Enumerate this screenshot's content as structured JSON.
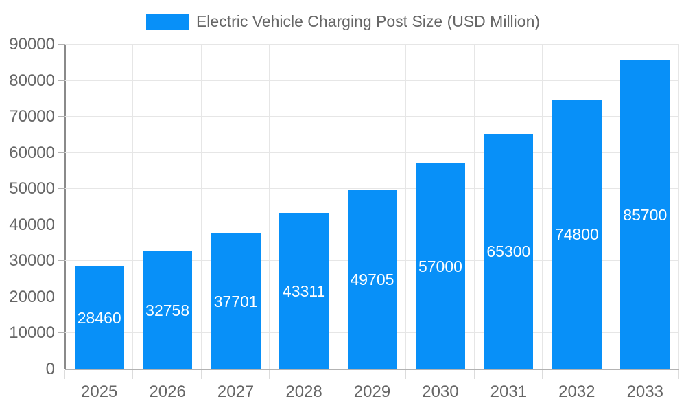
{
  "legend": {
    "label": "Electric Vehicle Charging Post Size (USD Million)"
  },
  "chart_data": {
    "type": "bar",
    "title": "Electric Vehicle Charging Post Size (USD Million)",
    "series_name": "Electric Vehicle Charging Post Size (USD Million)",
    "categories": [
      "2025",
      "2026",
      "2027",
      "2028",
      "2029",
      "2030",
      "2031",
      "2032",
      "2033"
    ],
    "values": [
      28460,
      32758,
      37701,
      43311,
      49705,
      57000,
      65300,
      74800,
      85700
    ],
    "xlabel": "",
    "ylabel": "",
    "ylim": [
      0,
      90000
    ],
    "ytick_step": 10000,
    "yticks": [
      0,
      10000,
      20000,
      30000,
      40000,
      50000,
      60000,
      70000,
      80000,
      90000
    ],
    "grid": true,
    "legend_position": "top",
    "value_label_position": "inside-center",
    "colors": {
      "bar": "#0890f8",
      "value_label": "#ffffff",
      "axis_text": "#666666",
      "title_text": "#666666",
      "gridline": "#e6e6e6",
      "y_axis_line": "#8a8a8a",
      "x_axis_line": "#b3b3b3",
      "y_tick": "#b3b3b3",
      "x_tick": "#dcdcdc",
      "background": "#ffffff"
    }
  }
}
